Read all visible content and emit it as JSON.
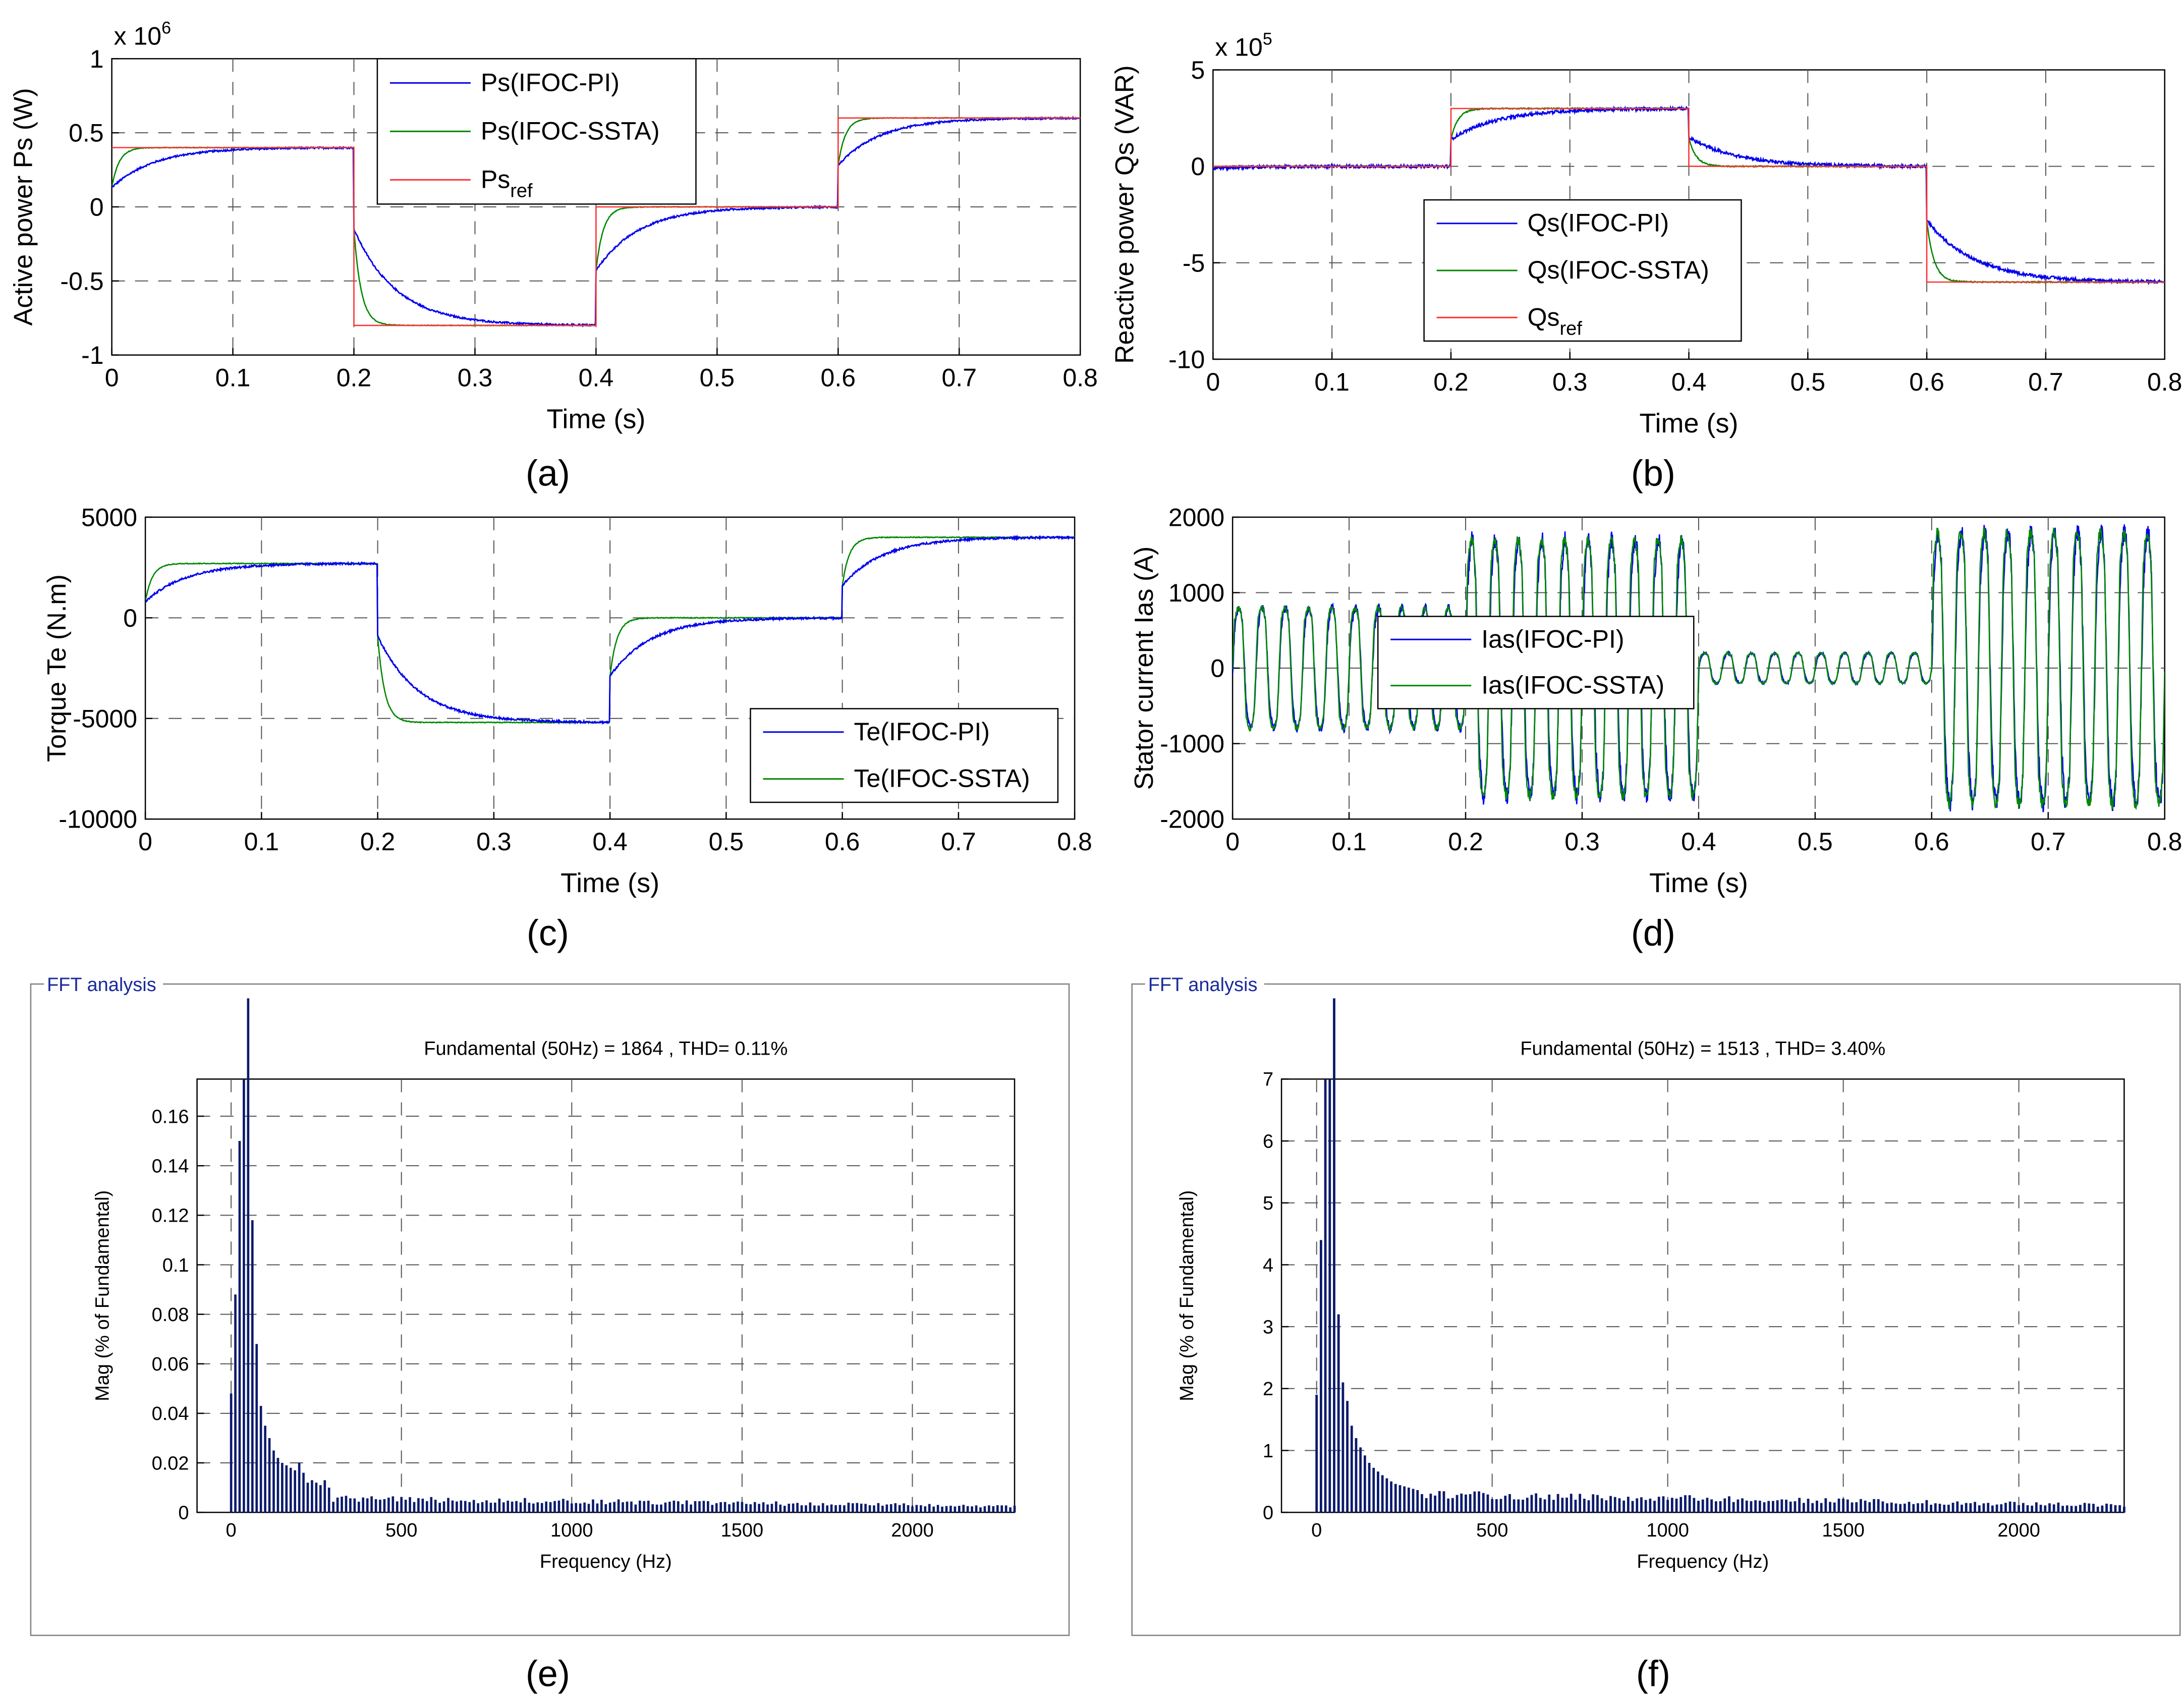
{
  "colors": {
    "pi": "#0000ee",
    "ssta": "#008800",
    "ref": "#ff3333",
    "fft_bar": "#0a1a6b",
    "fft_text": "#1a2a9c",
    "panel_border": "#808080"
  },
  "chart_data": [
    {
      "id": "a",
      "type": "line",
      "caption": "(a)",
      "ylabel": "Active power Ps (W)",
      "xlabel": "Time (s)",
      "multiplier": "x 10^6",
      "multiplier_base": "x 10",
      "multiplier_exp": "6",
      "xlim": [
        0,
        0.8
      ],
      "ylim": [
        -1,
        1
      ],
      "xticks": [
        0,
        0.1,
        0.2,
        0.3,
        0.4,
        0.5,
        0.6,
        0.7,
        0.8
      ],
      "xtick_labels": [
        "0",
        "0.1",
        "0.2",
        "0.3",
        "0.4",
        "0.5",
        "0.6",
        "0.7",
        "0.8"
      ],
      "yticks": [
        -1,
        -0.5,
        0,
        0.5,
        1
      ],
      "ytick_labels": [
        "-1",
        "-0.5",
        "0",
        "0.5",
        "1"
      ],
      "grid": true,
      "legend_position": "top-center",
      "legend": [
        {
          "label": "Ps(IFOC-PI)",
          "sub": "",
          "series": "pi"
        },
        {
          "label": "Ps(IFOC-SSTA)",
          "sub": "",
          "series": "ssta"
        },
        {
          "label": "Ps",
          "sub": "ref",
          "series": "ref"
        }
      ],
      "segments": [
        {
          "t0": 0.0,
          "t1": 0.2,
          "ref": 0.4,
          "start": 0.13
        },
        {
          "t0": 0.2,
          "t1": 0.4,
          "ref": -0.8,
          "start": -0.15
        },
        {
          "t0": 0.4,
          "t1": 0.6,
          "ref": 0.0,
          "start": -0.43
        },
        {
          "t0": 0.6,
          "t1": 0.8,
          "ref": 0.6,
          "start": 0.28
        }
      ],
      "tau_pi": 0.035,
      "tau_ssta": 0.006,
      "noise": 0.006
    },
    {
      "id": "b",
      "type": "line",
      "caption": "(b)",
      "ylabel": "Reactive power Qs (VAR)",
      "xlabel": "Time (s)",
      "multiplier": "x 10^5",
      "multiplier_base": "x 10",
      "multiplier_exp": "5",
      "xlim": [
        0,
        0.8
      ],
      "ylim": [
        -10,
        5
      ],
      "xticks": [
        0,
        0.1,
        0.2,
        0.3,
        0.4,
        0.5,
        0.6,
        0.7,
        0.8
      ],
      "xtick_labels": [
        "0",
        "0.1",
        "0.2",
        "0.3",
        "0.4",
        "0.5",
        "0.6",
        "0.7",
        "0.8"
      ],
      "yticks": [
        -10,
        -5,
        0,
        5
      ],
      "ytick_labels": [
        "-10",
        "-5",
        "0",
        "5"
      ],
      "grid": true,
      "legend_position": "lower-center",
      "legend": [
        {
          "label": "Qs(IFOC-PI)",
          "sub": "",
          "series": "pi"
        },
        {
          "label": "Qs(IFOC-SSTA)",
          "sub": "",
          "series": "ssta"
        },
        {
          "label": "Qs",
          "sub": "ref",
          "series": "ref"
        }
      ],
      "segments": [
        {
          "t0": 0.0,
          "t1": 0.2,
          "ref": 0.0,
          "start": -0.1
        },
        {
          "t0": 0.2,
          "t1": 0.4,
          "ref": 3.0,
          "start": 1.4
        },
        {
          "t0": 0.4,
          "t1": 0.6,
          "ref": 0.0,
          "start": 1.5
        },
        {
          "t0": 0.6,
          "t1": 0.8,
          "ref": -6.0,
          "start": -2.8
        }
      ],
      "tau_pi": 0.04,
      "tau_ssta": 0.006,
      "noise": 0.08
    },
    {
      "id": "c",
      "type": "line",
      "caption": "(c)",
      "ylabel": "Torque Te (N.m)",
      "xlabel": "Time (s)",
      "xlim": [
        0,
        0.8
      ],
      "ylim": [
        -10000,
        5000
      ],
      "xticks": [
        0,
        0.1,
        0.2,
        0.3,
        0.4,
        0.5,
        0.6,
        0.7,
        0.8
      ],
      "xtick_labels": [
        "0",
        "0.1",
        "0.2",
        "0.3",
        "0.4",
        "0.5",
        "0.6",
        "0.7",
        "0.8"
      ],
      "yticks": [
        -10000,
        -5000,
        0,
        5000
      ],
      "ytick_labels": [
        "-10000",
        "-5000",
        "0",
        "5000"
      ],
      "grid": true,
      "legend_position": "bottom-right",
      "legend": [
        {
          "label": "Te(IFOC-PI)",
          "sub": "",
          "series": "pi"
        },
        {
          "label": "Te(IFOC-SSTA)",
          "sub": "",
          "series": "ssta"
        }
      ],
      "segments": [
        {
          "t0": 0.0,
          "t1": 0.2,
          "ref": 2700,
          "start": 800
        },
        {
          "t0": 0.2,
          "t1": 0.4,
          "ref": -5200,
          "start": -900
        },
        {
          "t0": 0.4,
          "t1": 0.6,
          "ref": 0,
          "start": -2900
        },
        {
          "t0": 0.6,
          "t1": 0.8,
          "ref": 4000,
          "start": 1600
        }
      ],
      "tau_pi": 0.035,
      "tau_ssta": 0.006,
      "noise": 50
    },
    {
      "id": "d",
      "type": "line",
      "caption": "(d)",
      "ylabel": "Stator current Ias (A)",
      "xlabel": "Time (s)",
      "xlim": [
        0,
        0.8
      ],
      "ylim": [
        -2000,
        2000
      ],
      "xticks": [
        0,
        0.1,
        0.2,
        0.3,
        0.4,
        0.5,
        0.6,
        0.7,
        0.8
      ],
      "xtick_labels": [
        "0",
        "0.1",
        "0.2",
        "0.3",
        "0.4",
        "0.5",
        "0.6",
        "0.7",
        "0.8"
      ],
      "yticks": [
        -2000,
        -1000,
        0,
        1000,
        2000
      ],
      "ytick_labels": [
        "-2000",
        "-1000",
        "0",
        "1000",
        "2000"
      ],
      "grid": true,
      "legend_position": "center",
      "legend": [
        {
          "label": "Ias(IFOC-PI)",
          "sub": "",
          "series": "pi"
        },
        {
          "label": "Ias(IFOC-SSTA)",
          "sub": "",
          "series": "ssta"
        }
      ],
      "frequency_hz": 50,
      "segments": [
        {
          "t0": 0.0,
          "t1": 0.2,
          "amp": 800
        },
        {
          "t0": 0.2,
          "t1": 0.4,
          "amp": 1700
        },
        {
          "t0": 0.4,
          "t1": 0.6,
          "amp": 200
        },
        {
          "t0": 0.6,
          "t1": 0.8,
          "amp": 1800
        }
      ]
    },
    {
      "id": "e",
      "type": "bar",
      "caption": "(e)",
      "panel_title": "FFT analysis",
      "title": "Fundamental (50Hz) = 1864 , THD= 0.11%",
      "xlabel": "Frequency (Hz)",
      "ylabel": "Mag (% of Fundamental)",
      "xlim": [
        -100,
        2300
      ],
      "ylim": [
        0,
        0.175
      ],
      "xticks": [
        0,
        500,
        1000,
        1500,
        2000
      ],
      "xtick_labels": [
        "0",
        "500",
        "1000",
        "1500",
        "2000"
      ],
      "yticks": [
        0,
        0.02,
        0.04,
        0.06,
        0.08,
        0.1,
        0.12,
        0.14,
        0.16
      ],
      "ytick_labels": [
        "0",
        "0.02",
        "0.04",
        "0.06",
        "0.08",
        "0.1",
        "0.12",
        "0.14",
        "0.16"
      ],
      "grid": true,
      "bin_width_hz": 12.5,
      "fundamental_bar_clipped": true,
      "leading_values": [
        0.048,
        0.088,
        0.15,
        0.175,
        0.158,
        0.118,
        0.068,
        0.043,
        0.035,
        0.03,
        0.025,
        0.022,
        0.02,
        0.019,
        0.018,
        0.017,
        0.02,
        0.016,
        0.012,
        0.013,
        0.012,
        0.011,
        0.013,
        0.01
      ],
      "tail_level": 0.006,
      "tail_decay_per_hz": 1.5e-06,
      "tail_floor": 0.0025
    },
    {
      "id": "f",
      "type": "bar",
      "caption": "(f)",
      "panel_title": "FFT analysis",
      "title": "Fundamental (50Hz) = 1513 , THD= 3.40%",
      "xlabel": "Frequency (Hz)",
      "ylabel": "Mag (% of Fundamental)",
      "xlim": [
        -100,
        2300
      ],
      "ylim": [
        0,
        7
      ],
      "xticks": [
        0,
        500,
        1000,
        1500,
        2000
      ],
      "xtick_labels": [
        "0",
        "500",
        "1000",
        "1500",
        "2000"
      ],
      "yticks": [
        0,
        1,
        2,
        3,
        4,
        5,
        6,
        7
      ],
      "ytick_labels": [
        "0",
        "1",
        "2",
        "3",
        "4",
        "5",
        "6",
        "7"
      ],
      "grid": true,
      "bin_width_hz": 12.5,
      "fundamental_bar_clipped": true,
      "leading_values": [
        1.9,
        4.4,
        7.0,
        7.0,
        6.4,
        3.2,
        2.1,
        1.8,
        1.4,
        1.2,
        1.05,
        0.92,
        0.8,
        0.72,
        0.66,
        0.6,
        0.55,
        0.5,
        0.46,
        0.44,
        0.42,
        0.4,
        0.38,
        0.36
      ],
      "tail_level": 0.32,
      "tail_decay_per_hz": 9e-05,
      "tail_floor": 0.07
    }
  ]
}
